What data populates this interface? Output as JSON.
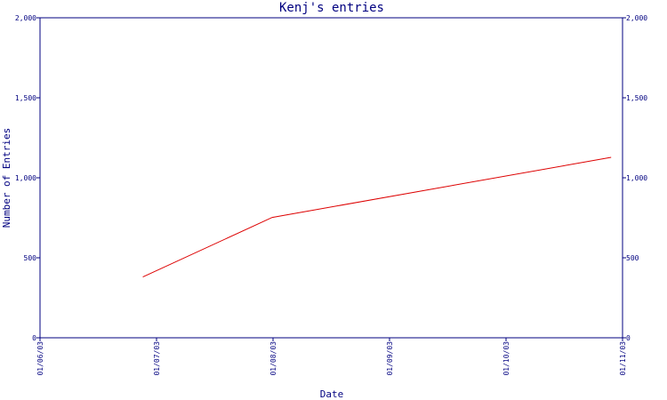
{
  "chart_data": {
    "type": "line",
    "title": "Kenj's entries",
    "xlabel": "Date",
    "ylabel": "Number of Entries",
    "x_ticks": [
      "01/06/03",
      "01/07/03",
      "01/08/03",
      "01/09/03",
      "01/10/03",
      "01/11/03"
    ],
    "y_ticks": [
      "0",
      "500",
      "1,000",
      "1,500",
      "2,000"
    ],
    "y_ticks_right": [
      "0",
      "500",
      "1,000",
      "1,500",
      "2,000"
    ],
    "ylim": [
      0,
      2000
    ],
    "xlim": [
      "2003-06-01",
      "2003-11-01"
    ],
    "grid": false,
    "series": [
      {
        "color": "#dd0000",
        "points": [
          {
            "x": "2003-06-28",
            "y": 380
          },
          {
            "x": "2003-08-01",
            "y": 752
          },
          {
            "x": "2003-10-29",
            "y": 1128
          }
        ]
      }
    ]
  },
  "colors": {
    "axis": "#000080",
    "line": "#dd0000",
    "background": "#ffffff"
  }
}
